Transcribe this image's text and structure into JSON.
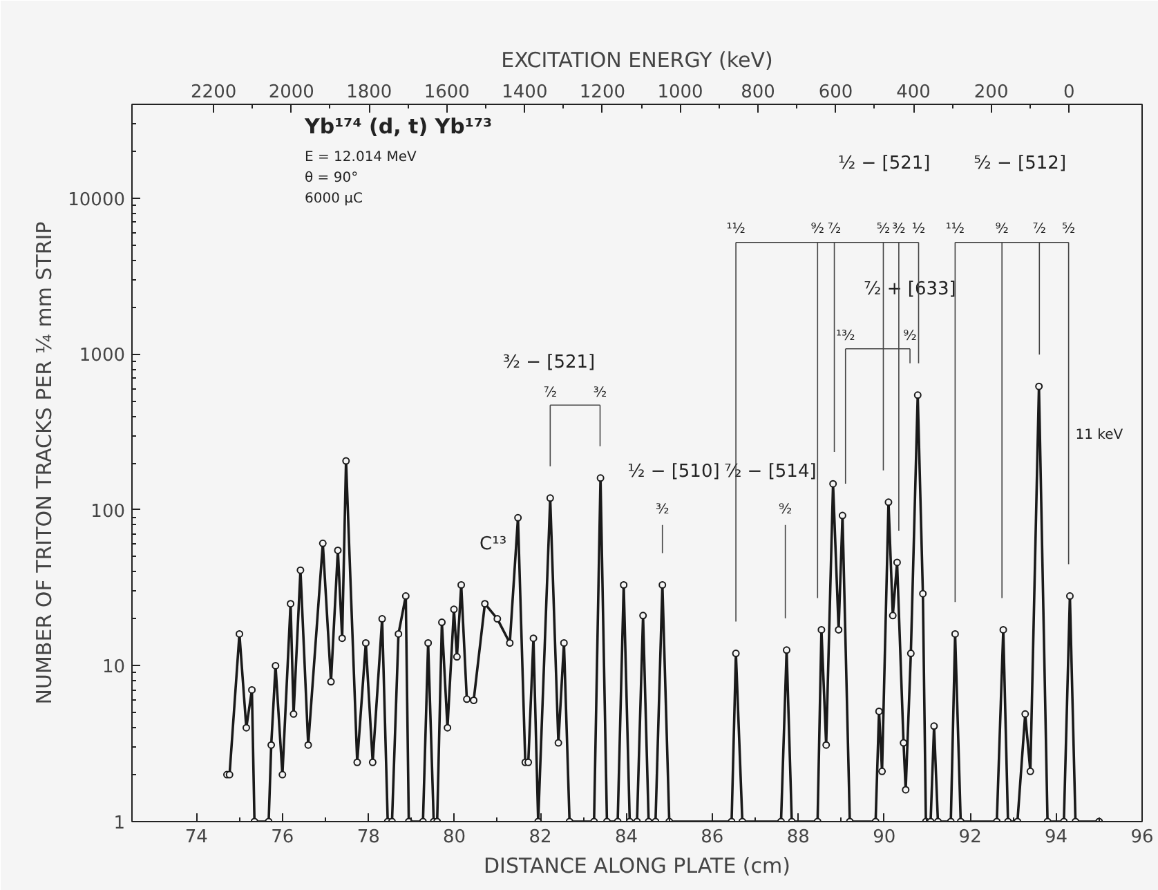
{
  "chart_data": {
    "type": "line",
    "xlabel": "DISTANCE ALONG PLATE (cm)",
    "x2label": "EXCITATION ENERGY (keV)",
    "ylabel": "NUMBER OF TRITON TRACKS PER ¼ mm STRIP",
    "x": [
      74.71,
      74.77,
      75.0,
      75.16,
      75.29,
      75.35,
      75.68,
      75.74,
      75.84,
      76.0,
      76.19,
      76.26,
      76.42,
      76.6,
      76.94,
      77.13,
      77.29,
      77.39,
      77.48,
      77.74,
      77.94,
      78.1,
      78.32,
      78.45,
      78.55,
      78.7,
      78.87,
      78.94,
      79.27,
      79.39,
      79.52,
      79.6,
      79.71,
      79.84,
      79.99,
      80.06,
      80.16,
      80.29,
      80.45,
      80.71,
      81.0,
      81.29,
      81.48,
      81.65,
      81.72,
      81.84,
      81.95,
      82.23,
      82.42,
      82.55,
      82.68,
      83.25,
      83.4,
      83.55,
      83.8,
      83.94,
      84.08,
      84.25,
      84.39,
      84.52,
      84.68,
      84.84,
      85.0,
      86.45,
      86.55,
      86.7,
      87.6,
      87.73,
      87.85,
      88.45,
      88.54,
      88.65,
      88.81,
      88.94,
      89.03,
      89.2,
      89.8,
      89.88,
      89.95,
      90.1,
      90.2,
      90.3,
      90.45,
      90.5,
      90.62,
      90.78,
      90.9,
      90.97,
      91.08,
      91.16,
      91.25,
      91.55,
      91.65,
      91.78,
      92.62,
      92.77,
      92.88,
      93.1,
      93.28,
      93.4,
      93.6,
      93.8,
      94.18,
      94.32,
      94.45,
      95.0
    ],
    "series": [
      {
        "color": "#1a1a1a",
        "values": [
          2,
          2,
          16,
          4,
          7,
          1,
          1,
          3.1,
          10,
          2,
          25,
          4.9,
          41,
          3.1,
          61,
          7.9,
          55,
          15,
          206,
          2.4,
          14,
          2.4,
          20,
          1,
          1,
          16,
          28,
          1,
          1,
          14,
          1,
          1,
          19,
          4,
          23,
          11.4,
          33,
          6.1,
          6,
          25,
          20,
          14,
          89,
          2.4,
          2.4,
          15,
          1,
          119,
          3.2,
          14,
          1,
          1,
          160,
          1,
          1,
          33,
          1,
          1,
          21,
          1,
          1,
          33,
          1,
          1,
          12,
          1,
          1,
          12.6,
          1,
          1,
          17,
          3.1,
          147,
          17,
          92,
          1,
          1,
          5.1,
          2.1,
          112,
          21,
          46,
          3.2,
          1.6,
          12,
          545,
          29,
          1,
          1,
          4.1,
          1,
          1,
          16,
          1,
          1,
          17,
          1,
          1,
          4.9,
          2.1,
          620,
          1,
          1,
          28,
          1,
          1
        ]
      }
    ],
    "xlim": [
      72.5,
      96
    ],
    "ylim": [
      1,
      40000
    ],
    "xticks": [
      74,
      76,
      78,
      80,
      82,
      84,
      86,
      88,
      90,
      92,
      94,
      96
    ],
    "yticks": [
      1,
      10,
      100,
      1000,
      10000
    ],
    "x2lim": [
      2410,
      -188
    ],
    "x2ticks": [
      2200,
      2000,
      1800,
      1600,
      1400,
      1200,
      1000,
      800,
      600,
      400,
      200,
      0
    ],
    "log": "y",
    "grid": false,
    "marker": "circle",
    "line_style": "solid",
    "annotations": [
      "Yb¹⁷⁴ (d, t) Yb¹⁷³",
      "E = 12.014 MeV",
      "θ = 90°",
      "6000 μC",
      "C¹³",
      "³⁄₂ − [521]",
      "⁷⁄₂",
      "³⁄₂",
      "¹⁄₂ − [510]",
      "³⁄₂",
      "⁷⁄₂ − [514]",
      "⁹⁄₂",
      "¹⁄₂ − [521]",
      "¹¹⁄₂",
      "⁹⁄₂",
      "⁷⁄₂",
      "⁵⁄₂",
      "³⁄₂",
      "¹⁄₂",
      "⁷⁄₂ + [633]",
      "¹³⁄₂",
      "⁹⁄₂",
      "⁵⁄₂ − [512]",
      "¹¹⁄₂",
      "⁹⁄₂",
      "⁷⁄₂",
      "⁵⁄₂",
      "11 keV"
    ]
  }
}
